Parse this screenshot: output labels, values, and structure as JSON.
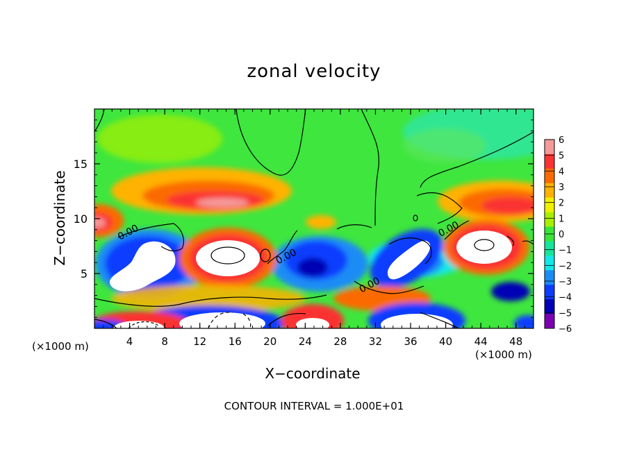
{
  "chart_data": {
    "type": "heatmap",
    "title": "zonal velocity",
    "xlabel": "X−coordinate",
    "ylabel": "Z−coordinate",
    "x_unit_label": "(×1000 m)",
    "x_unit_label_right": "(×1000 m)",
    "footer": "CONTOUR INTERVAL = 1.000E+01",
    "xlim": [
      0,
      50
    ],
    "ylim": [
      0,
      20
    ],
    "x_ticks": [
      "4",
      "8",
      "12",
      "16",
      "20",
      "24",
      "28",
      "32",
      "36",
      "40",
      "44",
      "48"
    ],
    "y_ticks": [
      "5",
      "10",
      "15"
    ],
    "contour_labels": [
      {
        "text": "0.00",
        "x": 4,
        "z": 8.5
      },
      {
        "text": "0.00",
        "x": 22,
        "z": 6.3
      },
      {
        "text": "0.00",
        "x": 31.5,
        "z": 3.7
      },
      {
        "text": "0.00",
        "x": 40.5,
        "z": 8.8
      }
    ],
    "colorbar": {
      "min": -6,
      "max": 6,
      "tick_labels": [
        "6",
        "5",
        "4",
        "3",
        "2",
        "1",
        "0",
        "−1",
        "−2",
        "−3",
        "−4",
        "−5",
        "−6"
      ],
      "colors": [
        "#f49a9a",
        "#fb3333",
        "#fb6a00",
        "#ffb200",
        "#f0f000",
        "#a6f000",
        "#38e638",
        "#16e69a",
        "#13e7e7",
        "#1a8cf5",
        "#0e3cff",
        "#0000b4",
        "#7b00b4"
      ]
    },
    "features": [
      {
        "label": "positive jet",
        "x": 12,
        "z": 11.5,
        "value": 5
      },
      {
        "label": "positive jet",
        "x": 46,
        "z": 11.0,
        "value": 5
      },
      {
        "label": "positive band",
        "x": 1,
        "z": 9.5,
        "value": 5
      },
      {
        "label": "negative core",
        "x": 6,
        "z": 5.5,
        "value": -7
      },
      {
        "label": "positive core",
        "x": 15,
        "z": 6.2,
        "value": 7
      },
      {
        "label": "negative core",
        "x": 34.5,
        "z": 5.8,
        "value": -7
      },
      {
        "label": "positive core",
        "x": 44.5,
        "z": 7.3,
        "value": 7
      },
      {
        "label": "negative core",
        "x": 14,
        "z": 0.8,
        "value": -7
      },
      {
        "label": "negative core",
        "x": 35.5,
        "z": 1.0,
        "value": -7
      }
    ]
  }
}
